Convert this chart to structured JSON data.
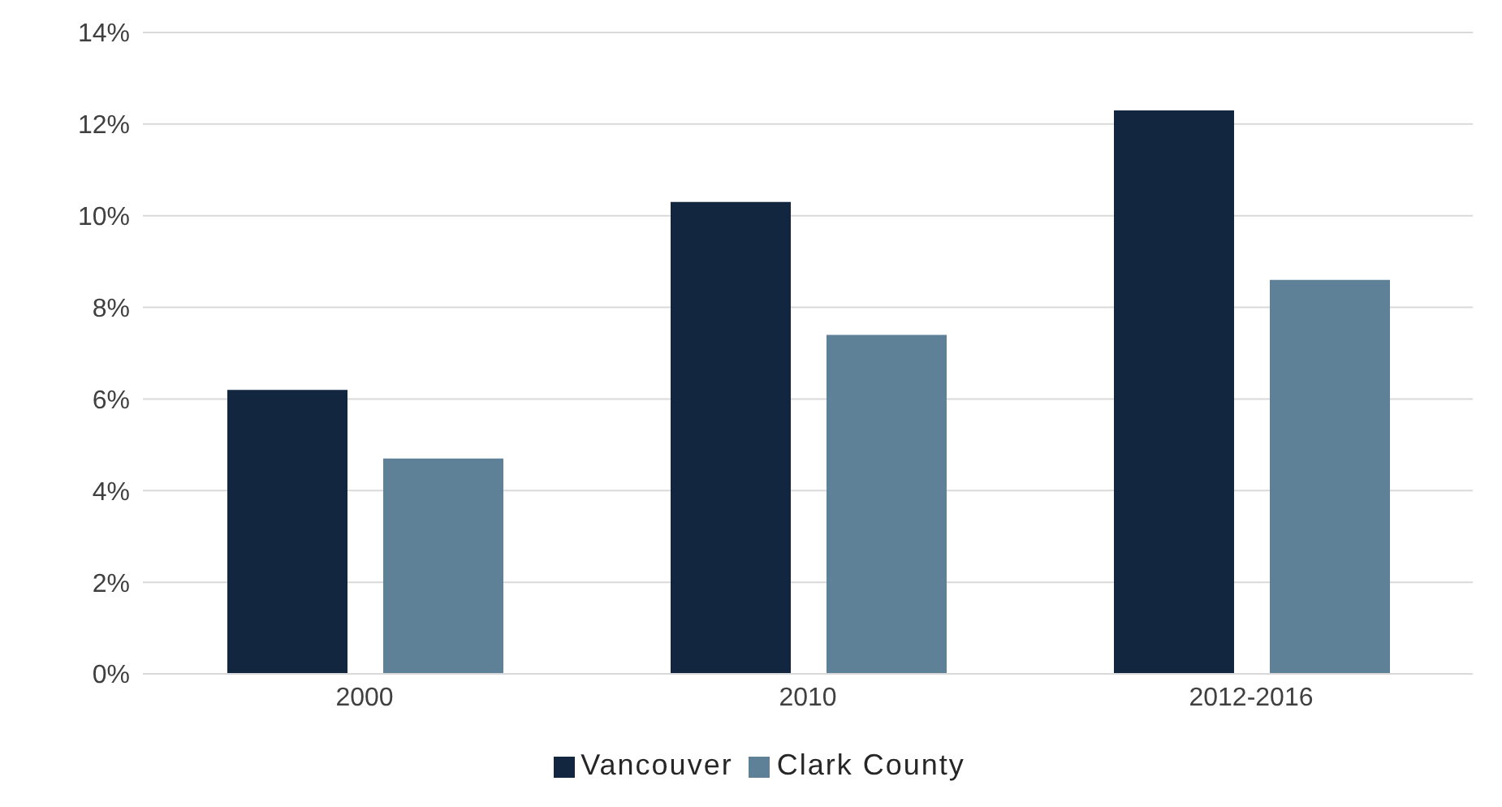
{
  "chart_data": {
    "type": "bar",
    "categories": [
      "2000",
      "2010",
      "2012-2016"
    ],
    "series": [
      {
        "name": "Vancouver",
        "color": "#13263f",
        "values": [
          6.2,
          10.3,
          12.3
        ]
      },
      {
        "name": "Clark County",
        "color": "#5f8197",
        "values": [
          4.7,
          7.4,
          8.6
        ]
      }
    ],
    "ylim": [
      0,
      14
    ],
    "yticks": [
      {
        "value": 0,
        "label": "0%"
      },
      {
        "value": 2,
        "label": "2%"
      },
      {
        "value": 4,
        "label": "4%"
      },
      {
        "value": 6,
        "label": "6%"
      },
      {
        "value": 8,
        "label": "8%"
      },
      {
        "value": 10,
        "label": "10%"
      },
      {
        "value": 12,
        "label": "12%"
      },
      {
        "value": 14,
        "label": "14%"
      }
    ],
    "grid": "y",
    "legend": "bottom"
  }
}
